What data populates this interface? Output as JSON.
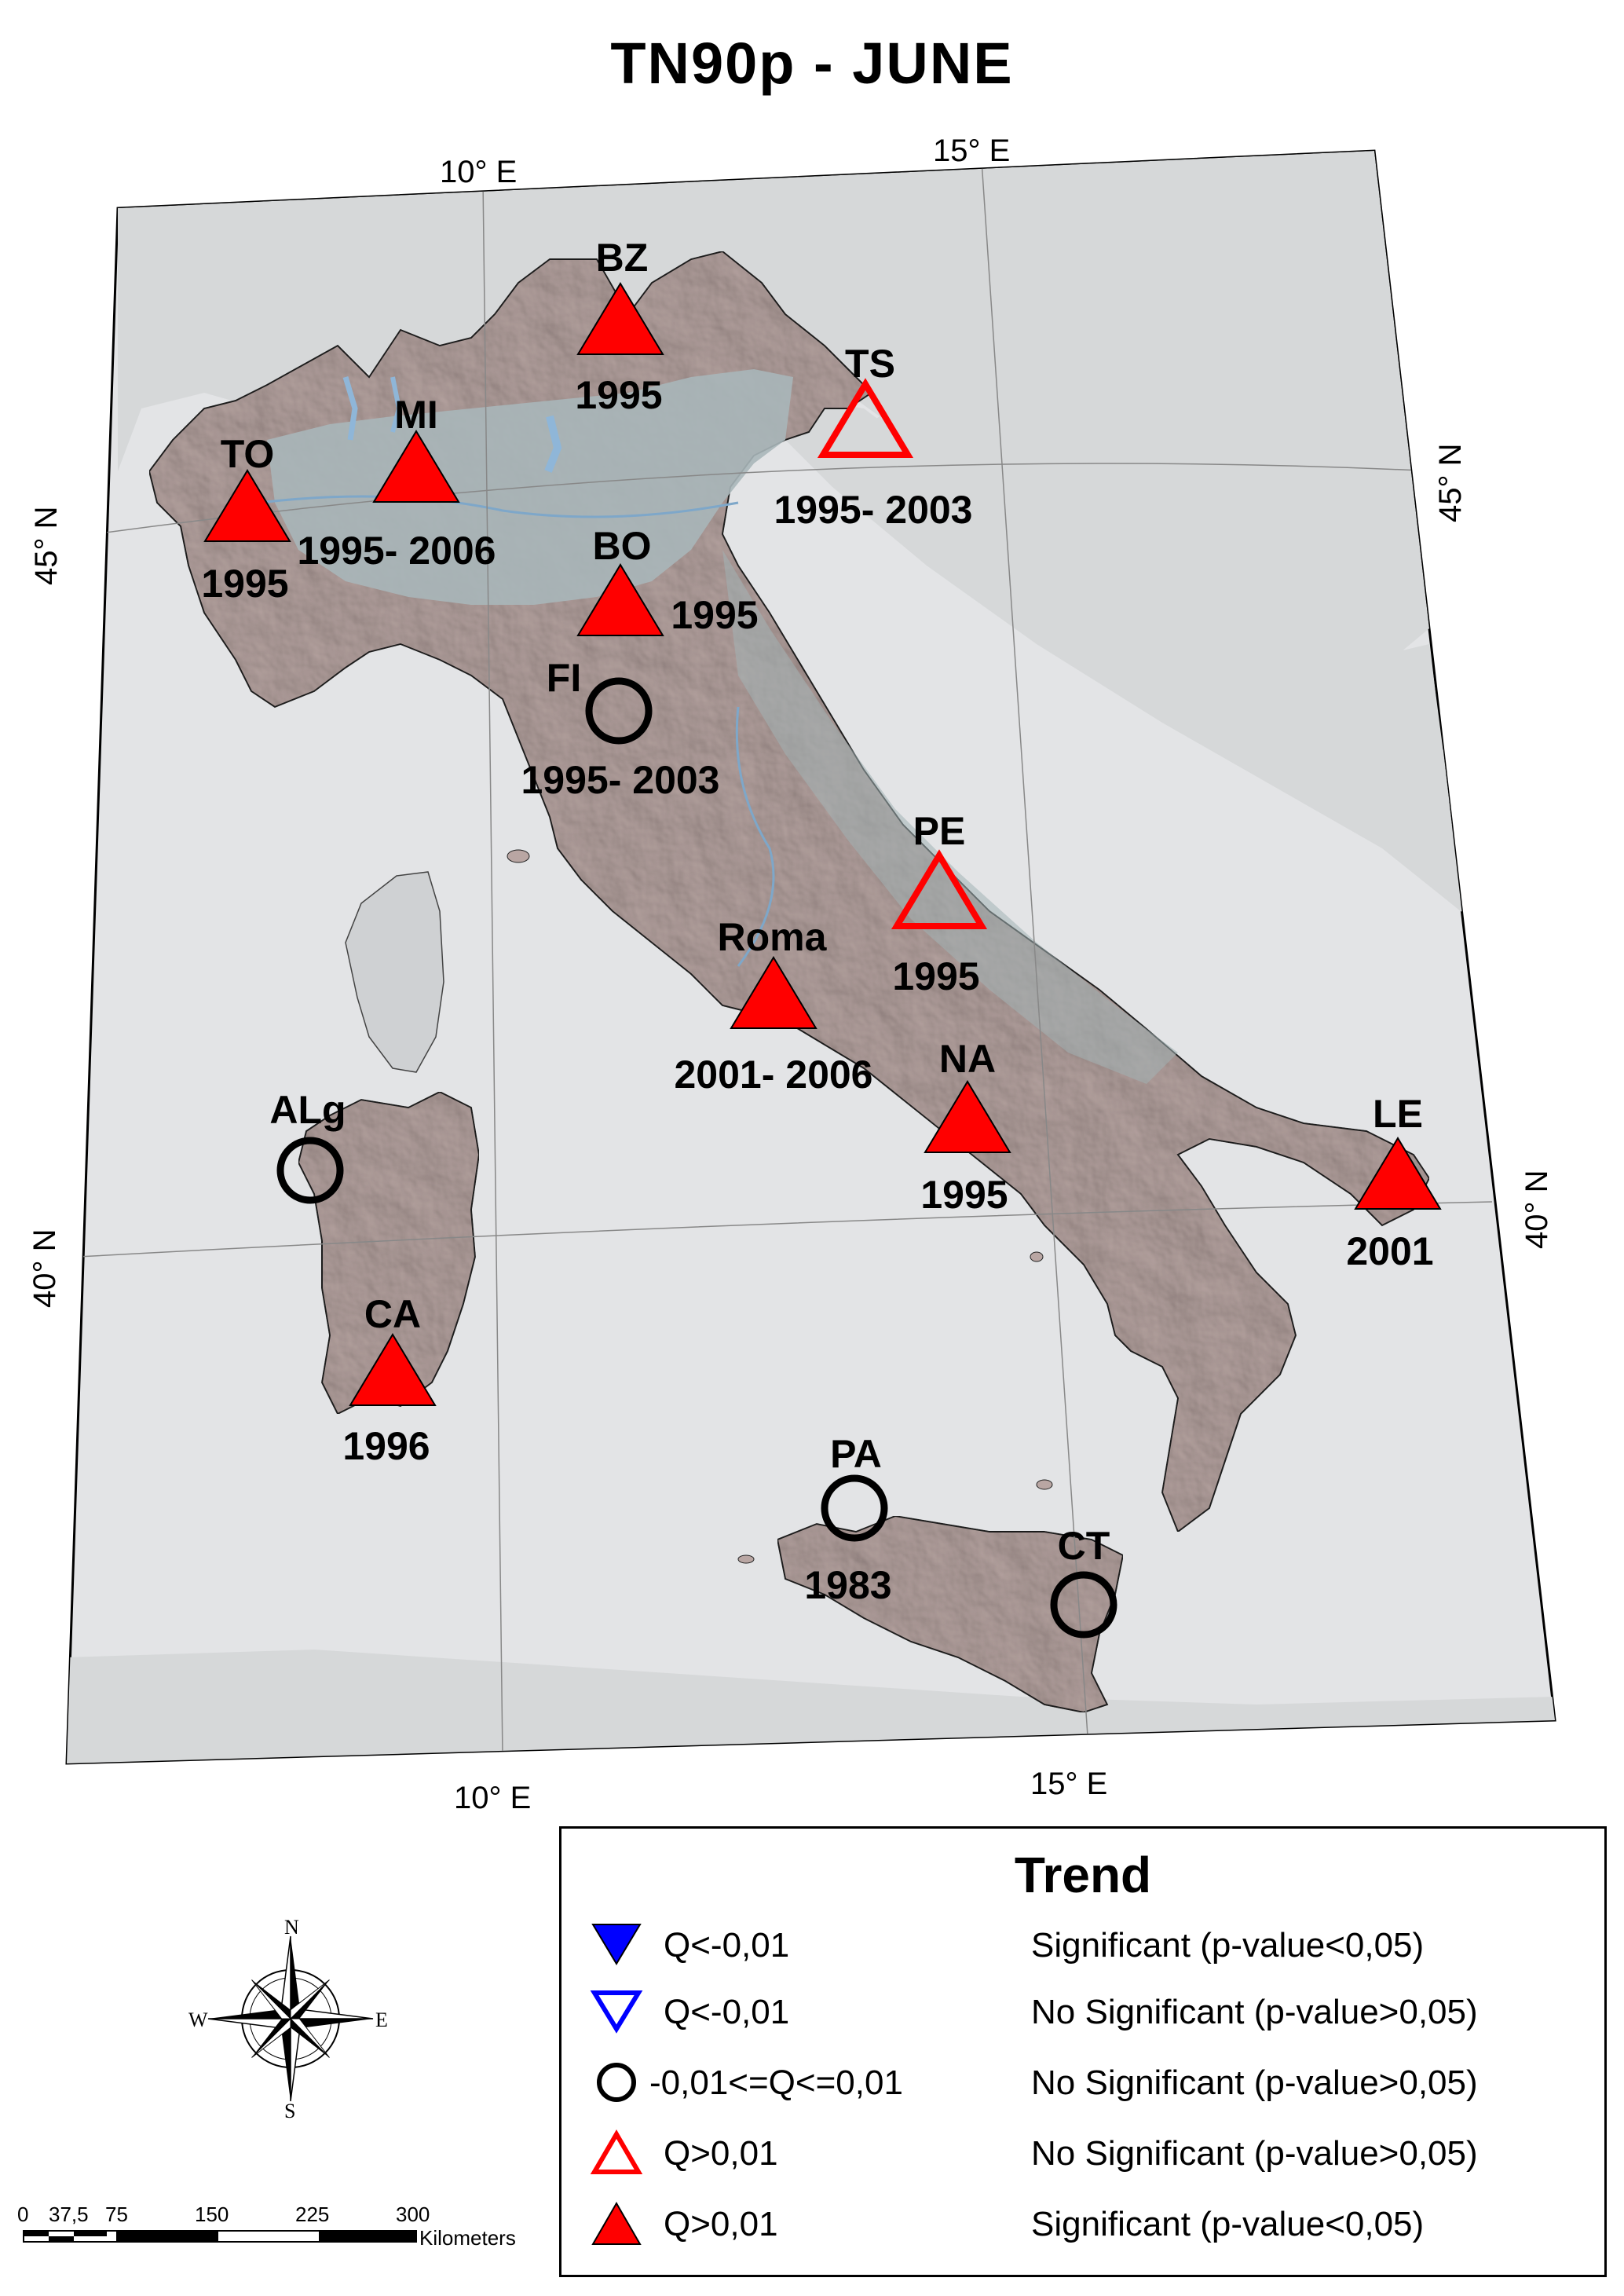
{
  "title": "TN90p - JUNE",
  "graticule": {
    "top_labels": [
      "10° E",
      "15° E"
    ],
    "bottom_labels": [
      "10° E",
      "15° E"
    ],
    "left_labels": [
      "45° N",
      "40° N"
    ],
    "right_labels": [
      "45° N",
      "40° N"
    ]
  },
  "stations": [
    {
      "code": "BZ",
      "years": "1995",
      "symbol": "triangle-filled"
    },
    {
      "code": "TS",
      "years": "1995- 2003",
      "symbol": "triangle-open"
    },
    {
      "code": "MI",
      "years": "1995- 2006",
      "symbol": "triangle-filled"
    },
    {
      "code": "TO",
      "years": "1995",
      "symbol": "triangle-filled"
    },
    {
      "code": "BO",
      "years": "1995",
      "symbol": "triangle-filled"
    },
    {
      "code": "FI",
      "years": "1995- 2003",
      "symbol": "circle"
    },
    {
      "code": "PE",
      "years": "1995",
      "symbol": "triangle-open"
    },
    {
      "code": "Roma",
      "years": "2001- 2006",
      "symbol": "triangle-filled"
    },
    {
      "code": "NA",
      "years": "1995",
      "symbol": "triangle-filled"
    },
    {
      "code": "LE",
      "years": "2001",
      "symbol": "triangle-filled"
    },
    {
      "code": "ALg",
      "years": "",
      "symbol": "circle"
    },
    {
      "code": "CA",
      "years": "1996",
      "symbol": "triangle-filled"
    },
    {
      "code": "PA",
      "years": "1983",
      "symbol": "circle"
    },
    {
      "code": "CT",
      "years": "",
      "symbol": "circle"
    }
  ],
  "legend": {
    "title": "Trend",
    "items": [
      {
        "symbol": "triangle-down-filled",
        "color": "#0000ff",
        "q": "Q<-0,01",
        "significance": "Significant (p-value<0,05)"
      },
      {
        "symbol": "triangle-down-open",
        "color": "#0000ff",
        "q": "Q<-0,01",
        "significance": "No Significant (p-value>0,05)"
      },
      {
        "symbol": "circle",
        "color": "#000000",
        "q": "-0,01<=Q<=0,01",
        "significance": "No Significant (p-value>0,05)"
      },
      {
        "symbol": "triangle-open",
        "color": "#ff0000",
        "q": "Q>0,01",
        "significance": "No Significant (p-value>0,05)"
      },
      {
        "symbol": "triangle-filled",
        "color": "#ff0000",
        "q": "Q>0,01",
        "significance": "Significant (p-value<0,05)"
      }
    ]
  },
  "compass": {
    "n": "N",
    "s": "S",
    "e": "E",
    "w": "W"
  },
  "scale": {
    "ticks": [
      "0",
      "37,5",
      "75",
      "150",
      "225",
      "300"
    ],
    "unit": "Kilometers"
  },
  "colors": {
    "significant_positive": "#ff0000",
    "significant_negative": "#0000ff",
    "no_trend": "#000000",
    "sea": "#e6e7e8",
    "italy_land": "#b9a6a2",
    "po_valley": "#a7b4b7",
    "foreign_land": "#d8dadb"
  }
}
